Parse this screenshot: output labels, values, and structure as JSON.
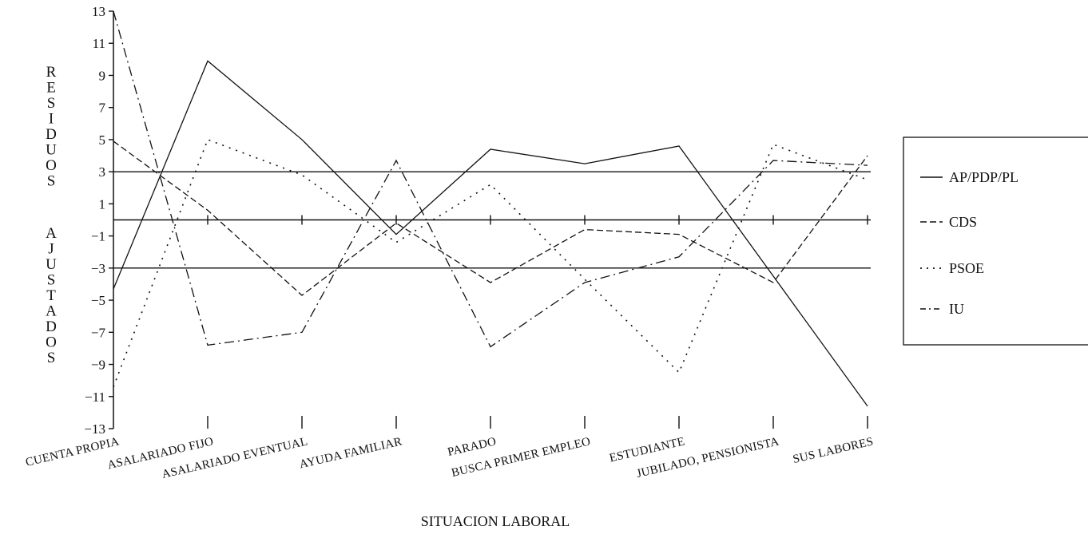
{
  "chart_data": {
    "type": "line",
    "title": "",
    "xlabel": "SITUACION LABORAL",
    "ylabel": "RESIDUOS AJUSTADOS",
    "ylabel_words": [
      "RESIDUOS",
      "AJUSTADOS"
    ],
    "ylim": [
      -13,
      13
    ],
    "yticks": [
      13,
      11,
      9,
      7,
      5,
      3,
      1,
      -1,
      -3,
      -5,
      -7,
      -9,
      -11,
      -13
    ],
    "ytick_labels": [
      "13",
      "11",
      "9",
      "7",
      "5",
      "3",
      "1",
      "−1",
      "−3",
      "−5",
      "−7",
      "−9",
      "−11",
      "−13"
    ],
    "reference_lines": [
      3,
      0,
      -3
    ],
    "grid": false,
    "legend_position": "right",
    "categories": [
      "CUENTA PROPIA",
      "ASALARIADO FIJO",
      "ASALARIADO EVENTUAL",
      "AYUDA FAMILIAR",
      "PARADO",
      "BUSCA PRIMER EMPLEO",
      "ESTUDIANTE",
      "JUBILADO, PENSIONISTA",
      "SUS LABORES"
    ],
    "series": [
      {
        "name": "AP/PDP/PL",
        "style": "solid",
        "values": [
          -4.3,
          9.9,
          5.0,
          -0.9,
          4.4,
          3.5,
          4.6,
          -3.5,
          -11.6
        ]
      },
      {
        "name": "CDS",
        "style": "dashed",
        "values": [
          4.9,
          0.6,
          -4.7,
          -0.2,
          -3.9,
          -0.6,
          -0.9,
          -3.9,
          4.0
        ]
      },
      {
        "name": "PSOE",
        "style": "dotted",
        "values": [
          -10.4,
          5.0,
          2.8,
          -1.4,
          2.2,
          -3.7,
          -9.5,
          4.7,
          2.5
        ]
      },
      {
        "name": "IU",
        "style": "dashdot",
        "values": [
          13.0,
          -7.8,
          -7.0,
          3.7,
          -7.9,
          -3.9,
          -2.3,
          3.7,
          3.4
        ]
      }
    ]
  }
}
